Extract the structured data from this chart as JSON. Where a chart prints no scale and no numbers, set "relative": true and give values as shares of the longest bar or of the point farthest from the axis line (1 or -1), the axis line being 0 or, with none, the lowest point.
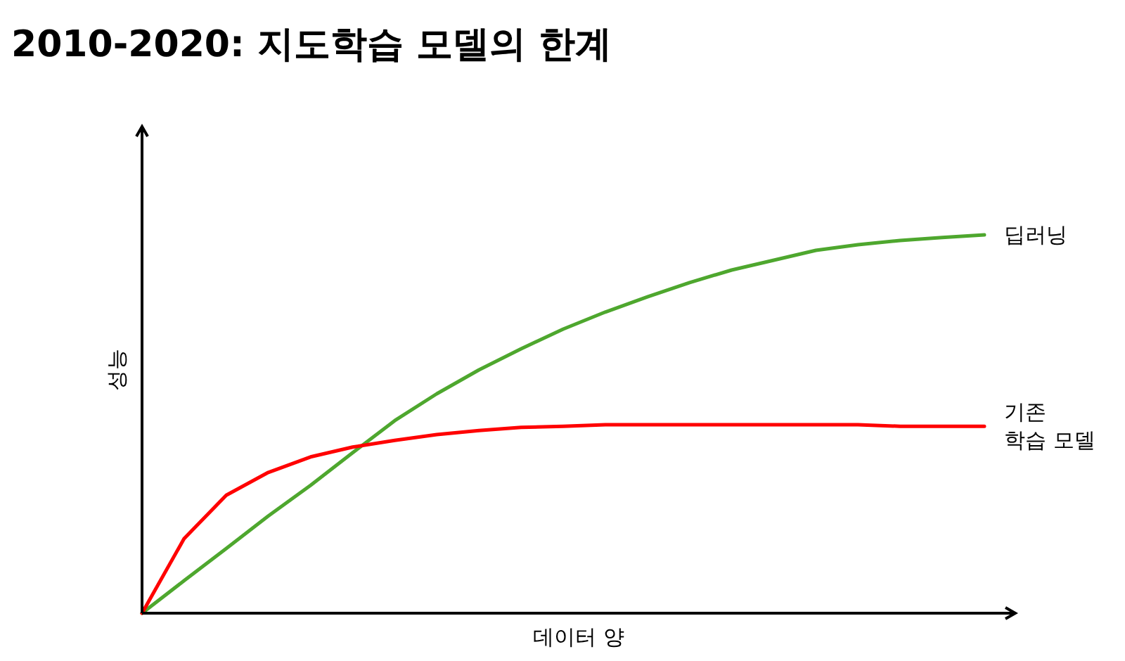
{
  "chart_data": {
    "type": "line",
    "title": "2010-2020: 지도학습 모델의 한계",
    "xlabel": "데이터 양",
    "ylabel": "성능",
    "relative": true,
    "legend": false,
    "grid": false,
    "marker": "none",
    "categories": [
      null,
      null,
      null,
      null,
      null,
      null,
      null,
      null,
      null,
      null,
      null,
      null,
      null,
      null,
      null,
      null,
      null,
      null,
      null,
      null,
      null
    ],
    "series": [
      {
        "name": "딥러닝",
        "color": "#4ea72e",
        "values": [
          0,
          0.086,
          0.171,
          0.257,
          0.338,
          0.424,
          0.509,
          0.58,
          0.643,
          0.699,
          0.751,
          0.796,
          0.836,
          0.874,
          0.907,
          0.933,
          0.959,
          0.974,
          0.985,
          0.993,
          1
        ]
      },
      {
        "name": "기존 학습 모델",
        "color": "#ff0000",
        "values": [
          0,
          0.197,
          0.312,
          0.372,
          0.413,
          0.439,
          0.457,
          0.472,
          0.483,
          0.491,
          0.494,
          0.498,
          0.498,
          0.498,
          0.498,
          0.498,
          0.498,
          0.498,
          0.494,
          0.494,
          0.494
        ]
      }
    ]
  }
}
